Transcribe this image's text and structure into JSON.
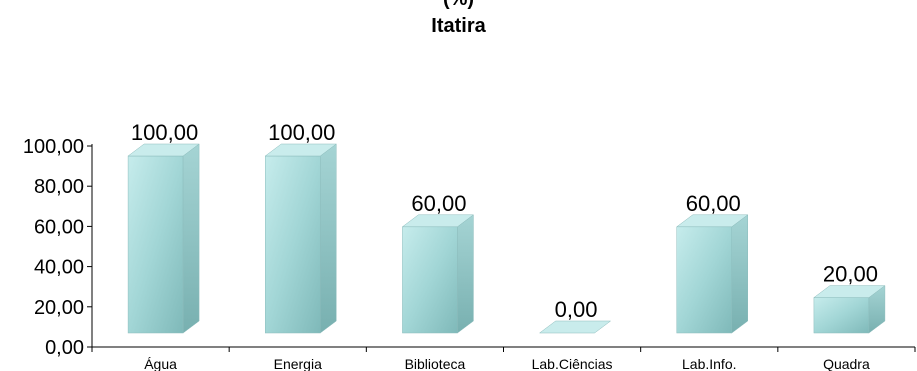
{
  "chart_data": {
    "type": "bar",
    "title": "(%)",
    "subtitle": "Itatira",
    "categories": [
      "Água",
      "Energia",
      "Biblioteca",
      "Lab.Ciências",
      "Lab.Info.",
      "Quadra"
    ],
    "values": [
      100,
      100,
      60,
      0,
      60,
      20
    ],
    "value_labels": [
      "100,00",
      "100,00",
      "60,00",
      "0,00",
      "60,00",
      "20,00"
    ],
    "y_ticks": [
      "0,00",
      "20,00",
      "40,00",
      "60,00",
      "80,00",
      "100,00"
    ],
    "ylim": [
      0,
      100
    ],
    "grid": false,
    "legend": "none",
    "bar_style": "3d",
    "colors": {
      "front": "#a7dada",
      "side": "#8ac4c4",
      "top": "#c9ecec",
      "axis": "#000000"
    }
  }
}
